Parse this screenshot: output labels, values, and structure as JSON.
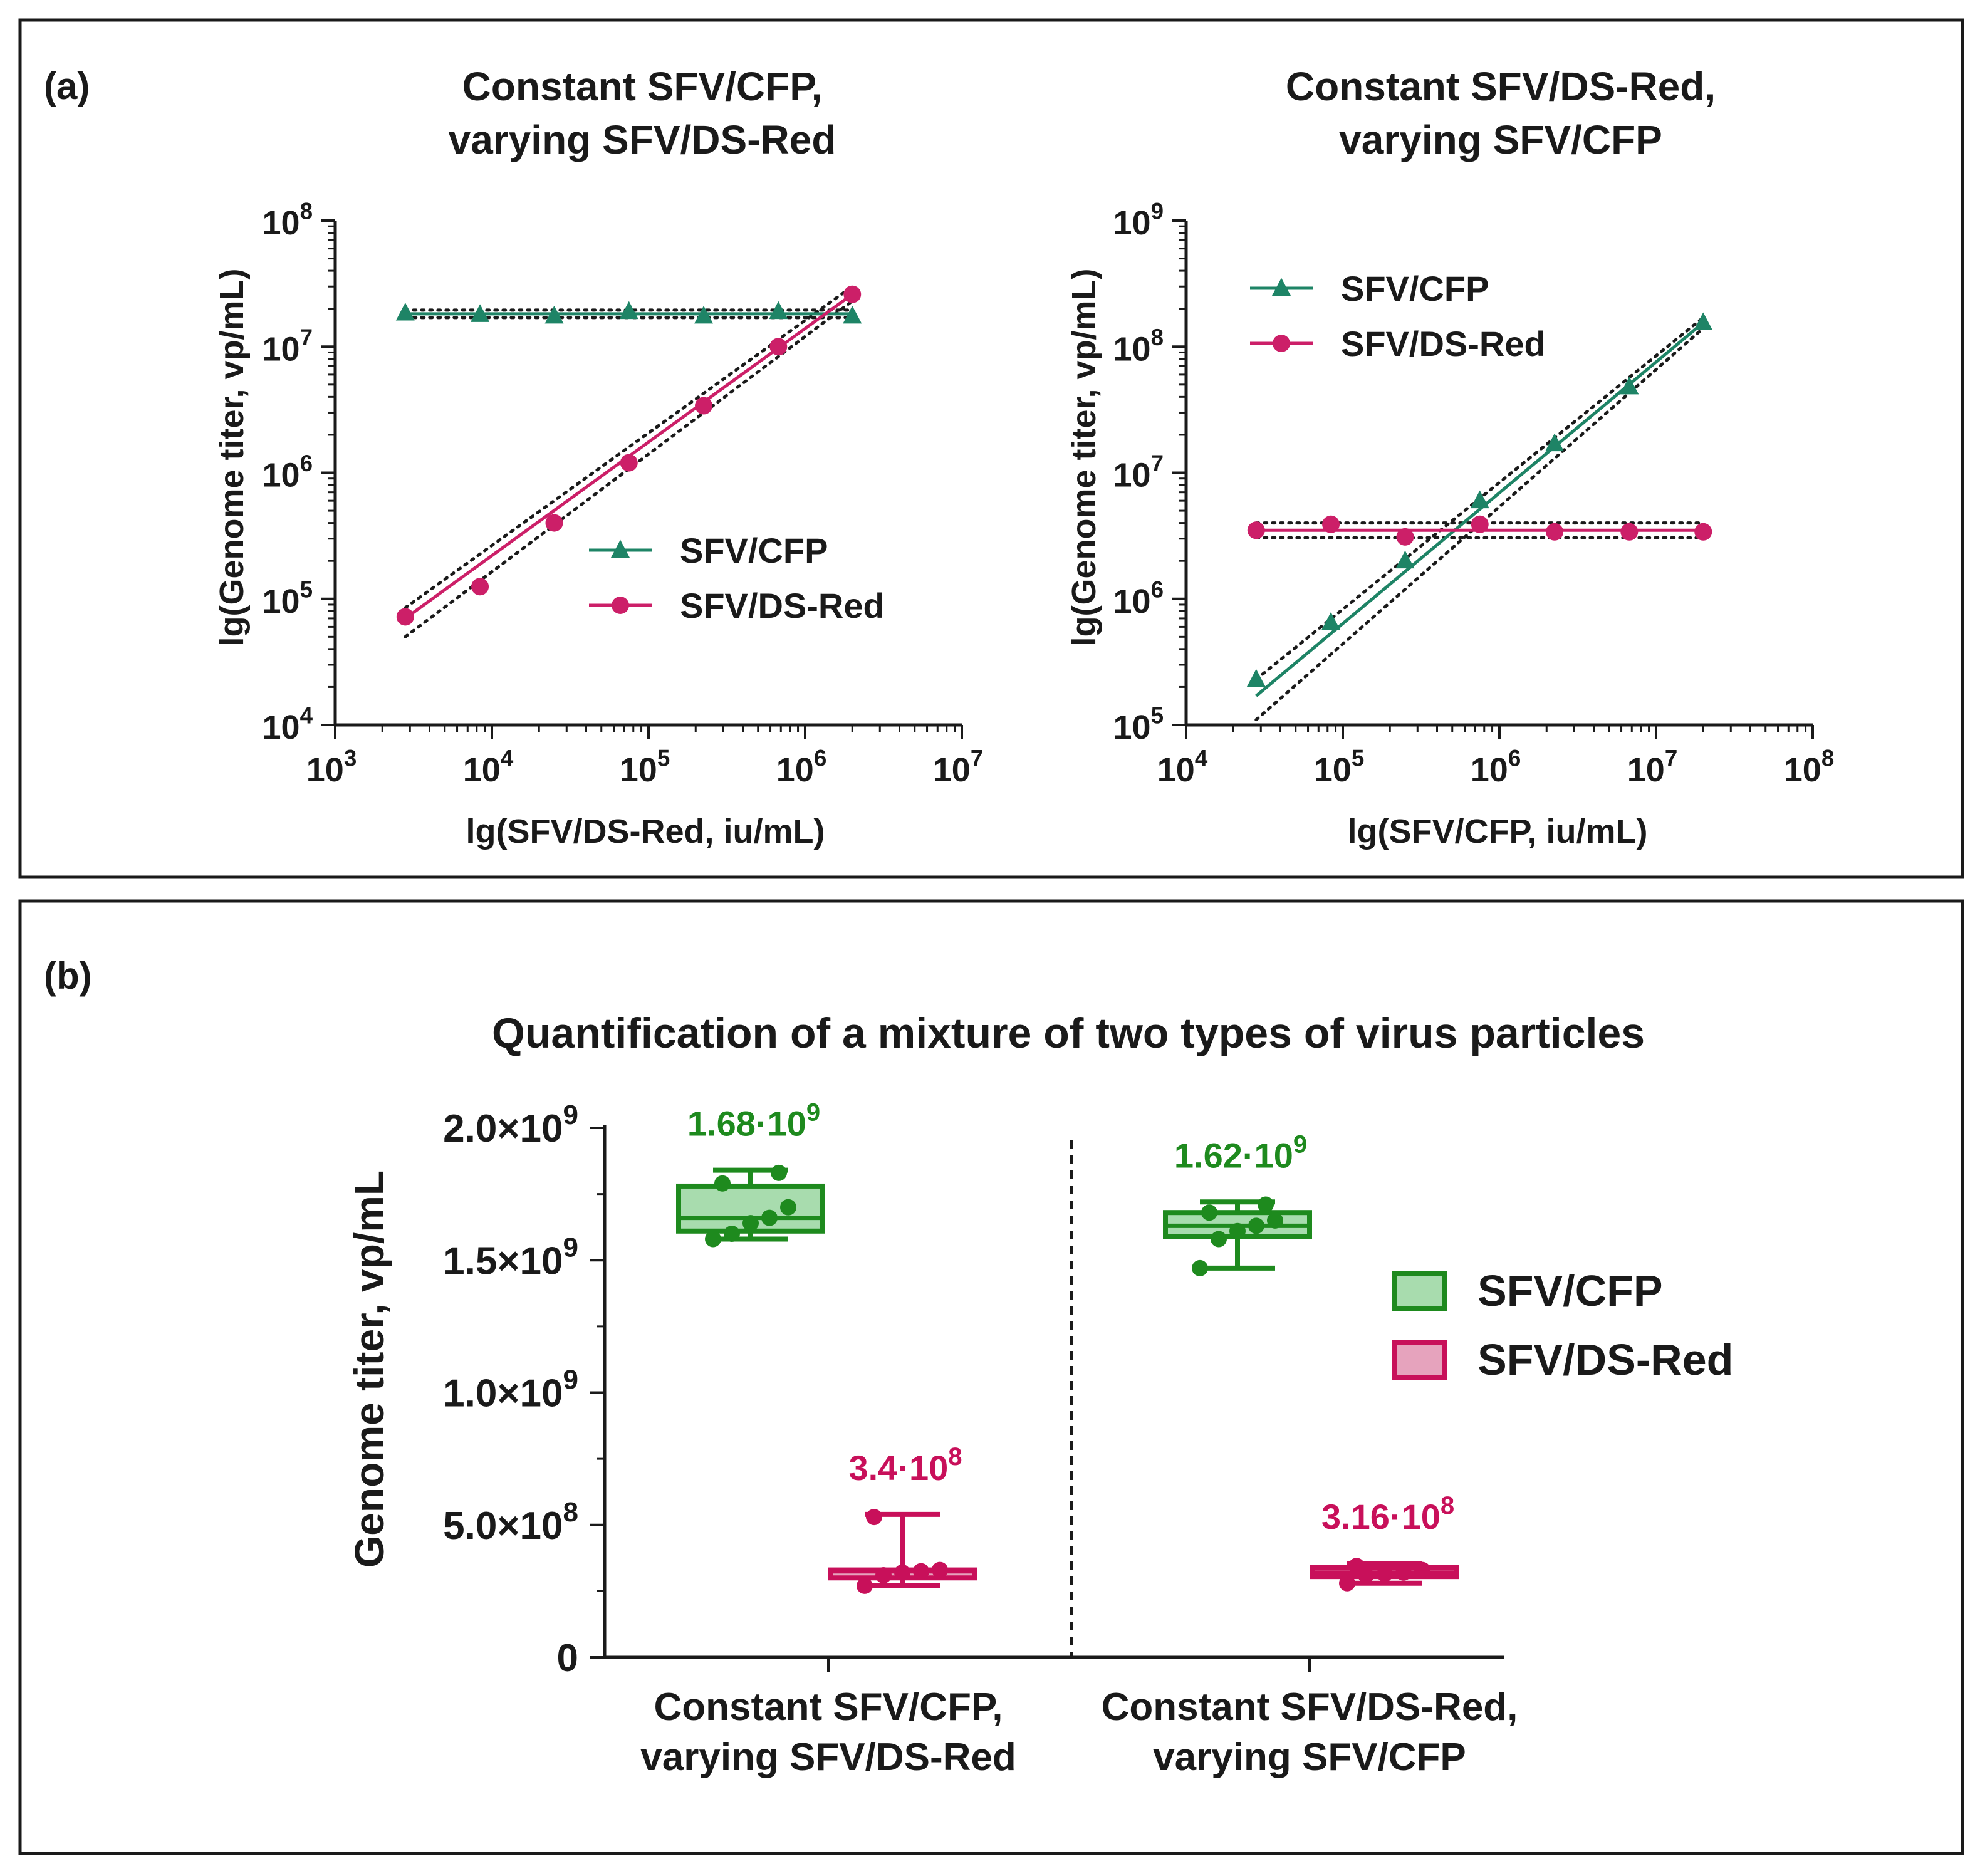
{
  "figure": {
    "panel_a_label": "(a)",
    "panel_b_label": "(b)"
  },
  "colors": {
    "cfp": "#1e8466",
    "dsred": "#cc1f68",
    "cfp_box": "#1e8a1e",
    "cfp_box_fill": "#a8dcae",
    "dsred_box": "#c8105a",
    "dsred_box_fill": "#e6a3bd",
    "axis": "#1a1a1a",
    "ci": "#1a1a1a"
  },
  "chart_data": [
    {
      "id": "a1",
      "type": "scatter",
      "title_lines": [
        "Constant SFV/CFP,",
        "varying SFV/DS-Red"
      ],
      "xlabel": "lg(SFV/DS-Red, iu/mL)",
      "ylabel": "lg(Genome titer, vp/mL)",
      "x_scale": "log10",
      "y_scale": "log10",
      "xlim_exp": [
        3,
        7
      ],
      "ylim_exp": [
        4,
        8
      ],
      "x_tick_labels": [
        {
          "base": "10",
          "exp": "3"
        },
        {
          "base": "10",
          "exp": "4"
        },
        {
          "base": "10",
          "exp": "5"
        },
        {
          "base": "10",
          "exp": "6"
        },
        {
          "base": "10",
          "exp": "7"
        }
      ],
      "y_tick_labels": [
        {
          "base": "10",
          "exp": "4"
        },
        {
          "base": "10",
          "exp": "5"
        },
        {
          "base": "10",
          "exp": "6"
        },
        {
          "base": "10",
          "exp": "7"
        },
        {
          "base": "10",
          "exp": "8"
        }
      ],
      "legend": {
        "position": "lower-right",
        "items": [
          "SFV/CFP",
          "SFV/DS-Red"
        ]
      },
      "series": [
        {
          "name": "SFV/CFP",
          "marker": "triangle",
          "color_key": "cfp",
          "x": [
            2800,
            8400,
            25000,
            75000,
            225000,
            675000,
            2000000
          ],
          "y": [
            18500000,
            18000000,
            17500000,
            19000000,
            17500000,
            19000000,
            17500000
          ],
          "fit": {
            "x": [
              2800,
              2000000
            ],
            "y": [
              18200000,
              18200000
            ]
          },
          "ci": {
            "upper": [
              19500000,
              19500000
            ],
            "lower": [
              17000000,
              17000000
            ]
          }
        },
        {
          "name": "SFV/DS-Red",
          "marker": "circle",
          "color_key": "dsred",
          "x": [
            2800,
            8400,
            25000,
            75000,
            225000,
            675000,
            2000000
          ],
          "y": [
            72000,
            125000,
            400000,
            1200000,
            3400000,
            10000000,
            26000000
          ],
          "fit": {
            "x": [
              2800,
              2000000
            ],
            "y": [
              70000,
              26000000
            ]
          },
          "ci": {
            "upper": [
              85000,
              30000000
            ],
            "lower": [
              50000,
              23000000
            ]
          }
        }
      ]
    },
    {
      "id": "a2",
      "type": "scatter",
      "title_lines": [
        "Constant SFV/DS-Red,",
        "varying SFV/CFP"
      ],
      "xlabel": "lg(SFV/CFP, iu/mL)",
      "ylabel": "lg(Genome titer, vp/mL)",
      "x_scale": "log10",
      "y_scale": "log10",
      "xlim_exp": [
        4,
        8
      ],
      "ylim_exp": [
        5,
        9
      ],
      "x_tick_labels": [
        {
          "base": "10",
          "exp": "4"
        },
        {
          "base": "10",
          "exp": "5"
        },
        {
          "base": "10",
          "exp": "6"
        },
        {
          "base": "10",
          "exp": "7"
        },
        {
          "base": "10",
          "exp": "8"
        }
      ],
      "y_tick_labels": [
        {
          "base": "10",
          "exp": "5"
        },
        {
          "base": "10",
          "exp": "6"
        },
        {
          "base": "10",
          "exp": "7"
        },
        {
          "base": "10",
          "exp": "8"
        },
        {
          "base": "10",
          "exp": "9"
        }
      ],
      "legend": {
        "position": "upper-left",
        "items": [
          "SFV/CFP",
          "SFV/DS-Red"
        ]
      },
      "series": [
        {
          "name": "SFV/CFP",
          "marker": "triangle",
          "color_key": "cfp",
          "x": [
            28000,
            84000,
            250000,
            750000,
            2250000,
            6750000,
            20000000
          ],
          "y": [
            230000,
            650000,
            2000000,
            6000000,
            17000000,
            48000000,
            155000000
          ],
          "fit": {
            "x": [
              28000,
              20000000
            ],
            "y": [
              170000,
              155000000
            ]
          },
          "ci": {
            "upper": [
              230000,
              170000000
            ],
            "lower": [
              110000,
              140000000
            ]
          }
        },
        {
          "name": "SFV/DS-Red",
          "marker": "circle",
          "color_key": "dsred",
          "x": [
            28000,
            84000,
            250000,
            750000,
            2250000,
            6750000,
            20000000
          ],
          "y": [
            3500000,
            3900000,
            3100000,
            3900000,
            3400000,
            3400000,
            3400000
          ],
          "fit": {
            "x": [
              28000,
              20000000
            ],
            "y": [
              3500000,
              3500000
            ]
          },
          "ci": {
            "upper": [
              4000000,
              4000000
            ],
            "lower": [
              3050000,
              3050000
            ]
          }
        }
      ]
    },
    {
      "id": "b",
      "type": "box",
      "title": "Quantification of a mixture of two types of virus particles",
      "ylabel": "Genome titer, vp/mL",
      "ylim": [
        0,
        2000000000
      ],
      "y_ticks": [
        {
          "value": 0,
          "mant": "0",
          "exp": ""
        },
        {
          "value": 500000000,
          "mant": "5.0×10",
          "exp": "8"
        },
        {
          "value": 1000000000,
          "mant": "1.0×10",
          "exp": "9"
        },
        {
          "value": 1500000000,
          "mant": "1.5×10",
          "exp": "9"
        },
        {
          "value": 2000000000,
          "mant": "2.0×10",
          "exp": "9"
        }
      ],
      "categories": [
        {
          "lines": [
            "Constant SFV/CFP,",
            "varying SFV/DS-Red"
          ]
        },
        {
          "lines": [
            "Constant SFV/DS-Red,",
            "varying SFV/CFP"
          ]
        }
      ],
      "legend": {
        "position": "right",
        "items": [
          "SFV/CFP",
          "SFV/DS-Red"
        ]
      },
      "boxes": [
        {
          "category": 0,
          "series": "SFV/CFP",
          "min": 1580000000,
          "q1": 1610000000,
          "median": 1660000000,
          "q3": 1780000000,
          "max": 1840000000,
          "points": [
            1580000000,
            1600000000,
            1640000000,
            1660000000,
            1700000000,
            1790000000,
            1830000000
          ],
          "annotation": {
            "mant": "1.68·10",
            "exp": "9"
          }
        },
        {
          "category": 0,
          "series": "SFV/DS-Red",
          "min": 270000000,
          "q1": 300000000,
          "median": 325000000,
          "q3": 330000000,
          "max": 540000000,
          "points": [
            270000000,
            310000000,
            320000000,
            325000000,
            330000000,
            530000000
          ],
          "annotation": {
            "mant": "3.4·10",
            "exp": "8"
          }
        },
        {
          "category": 1,
          "series": "SFV/CFP",
          "min": 1470000000,
          "q1": 1590000000,
          "median": 1630000000,
          "q3": 1680000000,
          "max": 1720000000,
          "points": [
            1470000000,
            1580000000,
            1610000000,
            1630000000,
            1650000000,
            1680000000,
            1710000000
          ],
          "annotation": {
            "mant": "1.62·10",
            "exp": "9"
          }
        },
        {
          "category": 1,
          "series": "SFV/DS-Red",
          "min": 280000000,
          "q1": 305000000,
          "median": 320000000,
          "q3": 340000000,
          "max": 355000000,
          "points": [
            280000000,
            310000000,
            315000000,
            320000000,
            330000000,
            345000000
          ],
          "annotation": {
            "mant": "3.16·10",
            "exp": "8"
          }
        }
      ]
    }
  ]
}
